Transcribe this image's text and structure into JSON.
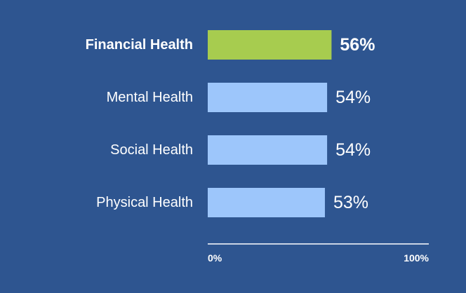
{
  "chart_data": {
    "type": "bar",
    "orientation": "horizontal",
    "categories": [
      "Financial Health",
      "Mental Health",
      "Social Health",
      "Physical Health"
    ],
    "values": [
      56,
      54,
      54,
      53
    ],
    "value_labels": [
      "56%",
      "54%",
      "54%",
      "53%"
    ],
    "highlighted_category": "Financial Health",
    "xlim": [
      0,
      100
    ],
    "x_ticks": [
      {
        "value": 0,
        "label": "0%"
      },
      {
        "value": 100,
        "label": "100%"
      }
    ],
    "grid": false,
    "legend": "none",
    "colors": {
      "background": "#2e5590",
      "highlight_bar": "#a7cc4f",
      "bar": "#9dc6fb",
      "text": "#ffffff",
      "axis": "#ffffff"
    }
  }
}
